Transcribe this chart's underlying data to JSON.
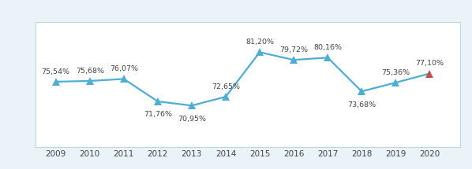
{
  "years": [
    2009,
    2010,
    2011,
    2012,
    2013,
    2014,
    2015,
    2016,
    2017,
    2018,
    2019,
    2020
  ],
  "values": [
    75.54,
    75.68,
    76.07,
    71.76,
    70.95,
    72.65,
    81.2,
    79.72,
    80.16,
    73.68,
    75.36,
    77.1
  ],
  "labels": [
    "75,54%",
    "75,68%",
    "76,07%",
    "71,76%",
    "70,95%",
    "72,65%",
    "81,20%",
    "79,72%",
    "80,16%",
    "73,68%",
    "75,36%",
    "77,10%"
  ],
  "line_color": "#4DADD4",
  "marker_color": "#4DADD4",
  "last_marker_color": "#C0504D",
  "plot_bg": "#FFFFFF",
  "outer_bg": "#EAF3F7",
  "header_color": "#2E9B96",
  "border_color": "#BDD7E7",
  "label_fontsize": 6.8,
  "tick_fontsize": 7.5,
  "ylim": [
    63,
    87
  ],
  "xlim": [
    2008.4,
    2020.9
  ],
  "marker_size": 6.5,
  "line_width": 1.6,
  "label_offsets": [
    6,
    6,
    6,
    -9,
    -9,
    6,
    6,
    6,
    6,
    -9,
    6,
    6
  ]
}
